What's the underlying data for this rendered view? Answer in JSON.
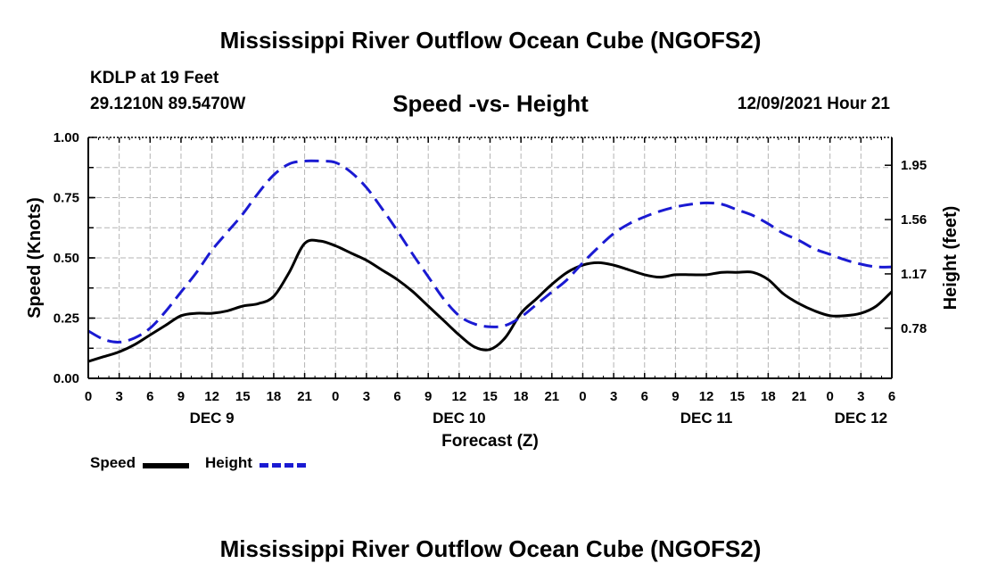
{
  "page": {
    "title": "Mississippi River Outflow Ocean Cube (NGOFS2)",
    "station": "KDLP at 19 Feet",
    "coords": "29.1210N  89.5470W",
    "subtitle": "Speed -vs- Height",
    "datetime": "12/09/2021 Hour 21",
    "footer_title": "Mississippi River Outflow Ocean Cube (NGOFS2)"
  },
  "legend": {
    "speed_label": "Speed",
    "height_label": "Height"
  },
  "colors": {
    "speed": "#000000",
    "height": "#1a1ad2",
    "grid": "#b4b4b4"
  },
  "chart_data": {
    "type": "line",
    "title": "Speed -vs- Height",
    "xlabel": "Forecast (Z)",
    "ylabel": "Speed (Knots)",
    "y2label": "Height (feet)",
    "xlim": [
      0,
      78
    ],
    "ylim": [
      0,
      1.0
    ],
    "y2lim": [
      0.42,
      2.15
    ],
    "x_ticks": [
      0,
      3,
      6,
      9,
      12,
      15,
      18,
      21,
      24,
      27,
      30,
      33,
      36,
      39,
      42,
      45,
      48,
      51,
      54,
      57,
      60,
      63,
      66,
      69,
      72,
      75,
      78
    ],
    "x_tick_labels": [
      "0",
      "3",
      "6",
      "9",
      "12",
      "15",
      "18",
      "21",
      "0",
      "3",
      "6",
      "9",
      "12",
      "15",
      "18",
      "21",
      "0",
      "3",
      "6",
      "9",
      "12",
      "15",
      "18",
      "21",
      "0",
      "3",
      "6"
    ],
    "day_labels": [
      {
        "x": 12,
        "label": "DEC 9"
      },
      {
        "x": 36,
        "label": "DEC 10"
      },
      {
        "x": 60,
        "label": "DEC 11"
      },
      {
        "x": 75,
        "label": "DEC 12"
      }
    ],
    "y_ticks": [
      0.0,
      0.25,
      0.5,
      0.75,
      1.0
    ],
    "y_tick_labels": [
      "0.00",
      "0.25",
      "0.50",
      "0.75",
      "1.00"
    ],
    "y2_ticks": [
      0.78,
      1.17,
      1.56,
      1.95
    ],
    "y2_tick_labels": [
      "0.78",
      "1.17",
      "1.56",
      "1.95"
    ],
    "grid": true,
    "series": [
      {
        "name": "Speed",
        "axis": "left",
        "style": "solid",
        "x": [
          0,
          1.5,
          3,
          4.5,
          6,
          7.5,
          9,
          10.5,
          12,
          13.5,
          15,
          16.5,
          18,
          19.5,
          21,
          22.5,
          24,
          25.5,
          27,
          28.5,
          30,
          31.5,
          33,
          34.5,
          36,
          37.5,
          39,
          40.5,
          42,
          43.5,
          45,
          46.5,
          48,
          49.5,
          51,
          52.5,
          54,
          55.5,
          57,
          58.5,
          60,
          61.5,
          63,
          64.5,
          66,
          67.5,
          69,
          70.5,
          72,
          73.5,
          75,
          76.5,
          78
        ],
        "values": [
          0.07,
          0.09,
          0.11,
          0.14,
          0.18,
          0.22,
          0.26,
          0.27,
          0.27,
          0.28,
          0.3,
          0.31,
          0.34,
          0.44,
          0.56,
          0.57,
          0.55,
          0.52,
          0.49,
          0.45,
          0.41,
          0.36,
          0.3,
          0.24,
          0.18,
          0.13,
          0.12,
          0.17,
          0.27,
          0.33,
          0.39,
          0.44,
          0.47,
          0.48,
          0.47,
          0.45,
          0.43,
          0.42,
          0.43,
          0.43,
          0.43,
          0.44,
          0.44,
          0.44,
          0.41,
          0.35,
          0.31,
          0.28,
          0.26,
          0.26,
          0.27,
          0.3,
          0.36
        ]
      },
      {
        "name": "Height",
        "axis": "right",
        "style": "dashed",
        "x": [
          0,
          1.5,
          3,
          4.5,
          6,
          7.5,
          9,
          10.5,
          12,
          13.5,
          15,
          16.5,
          18,
          19.5,
          21,
          22.5,
          24,
          25.5,
          27,
          28.5,
          30,
          31.5,
          33,
          34.5,
          36,
          37.5,
          39,
          40.5,
          42,
          43.5,
          45,
          46.5,
          48,
          49.5,
          51,
          52.5,
          54,
          55.5,
          57,
          58.5,
          60,
          61.5,
          63,
          64.5,
          66,
          67.5,
          69,
          70.5,
          72,
          73.5,
          75,
          76.5,
          78
        ],
        "values": [
          0.76,
          0.7,
          0.68,
          0.71,
          0.78,
          0.9,
          1.04,
          1.18,
          1.34,
          1.47,
          1.6,
          1.75,
          1.88,
          1.96,
          1.98,
          1.98,
          1.97,
          1.9,
          1.79,
          1.64,
          1.48,
          1.31,
          1.15,
          0.99,
          0.87,
          0.81,
          0.79,
          0.8,
          0.86,
          0.95,
          1.04,
          1.13,
          1.25,
          1.36,
          1.46,
          1.53,
          1.58,
          1.62,
          1.65,
          1.67,
          1.68,
          1.67,
          1.63,
          1.59,
          1.53,
          1.46,
          1.41,
          1.35,
          1.31,
          1.27,
          1.24,
          1.22,
          1.22
        ]
      }
    ]
  }
}
